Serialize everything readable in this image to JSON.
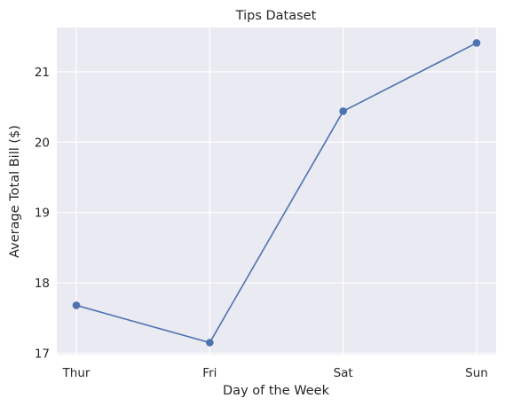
{
  "chart_data": {
    "type": "line",
    "title": "Tips Dataset",
    "xlabel": "Day of the Week",
    "ylabel": "Average Total Bill ($)",
    "categories": [
      "Thur",
      "Fri",
      "Sat",
      "Sun"
    ],
    "series": [
      {
        "values": [
          17.68,
          17.15,
          20.44,
          21.41
        ],
        "color": "#4c72b0",
        "marker": "circle"
      }
    ],
    "ylim": [
      16.98,
      21.63
    ],
    "yticks": [
      17,
      18,
      19,
      20,
      21
    ],
    "grid": true,
    "legend": "none",
    "background_color": "#eaeaf2",
    "grid_color": "#ffffff"
  }
}
